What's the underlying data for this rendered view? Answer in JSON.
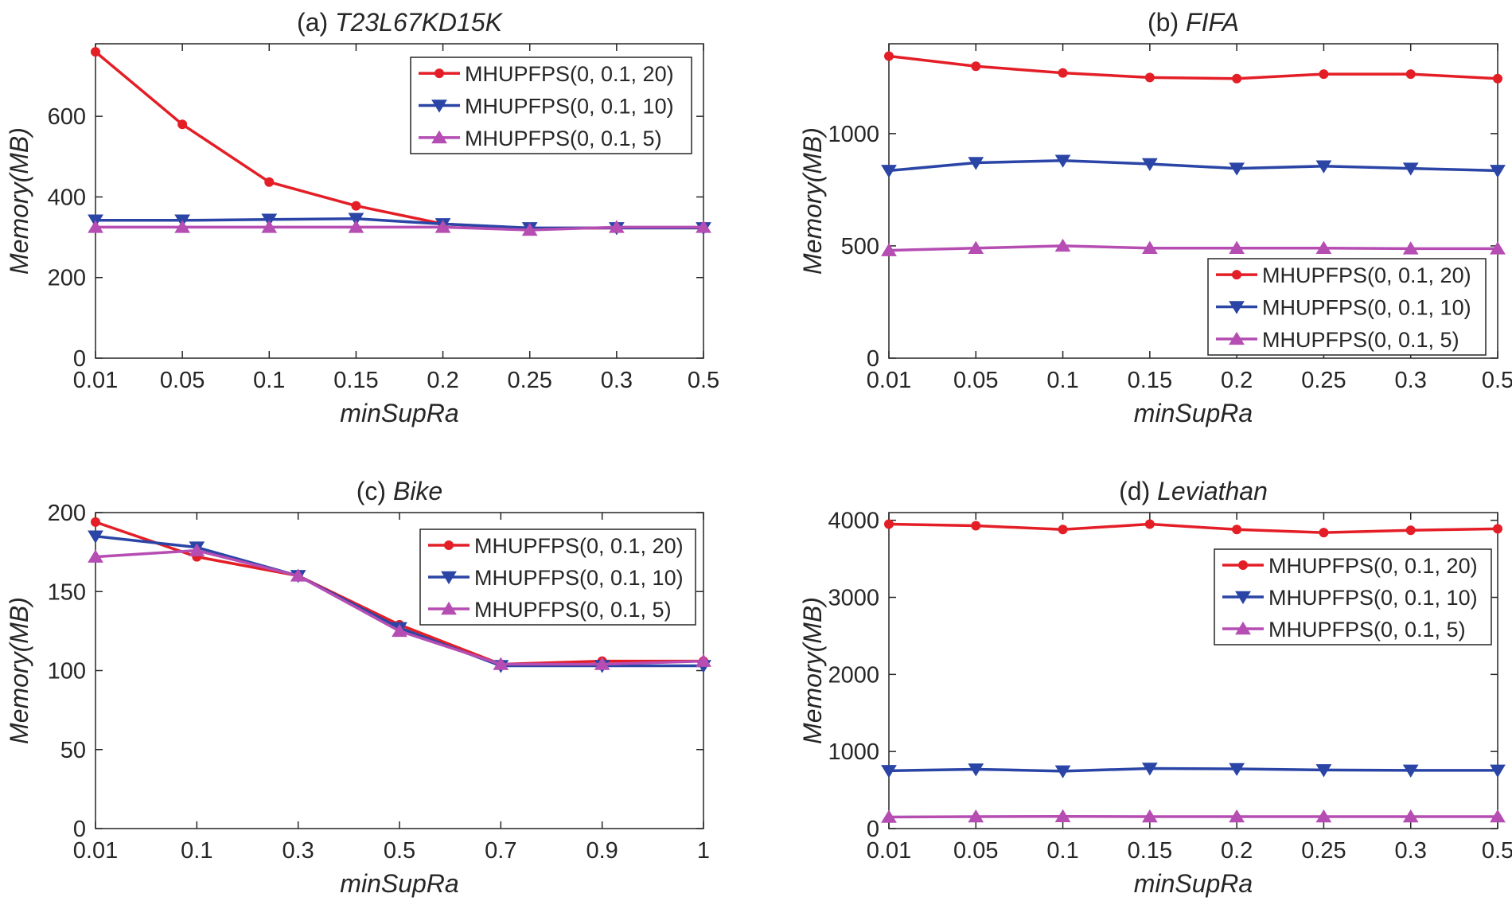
{
  "chart_data": [
    {
      "type": "line",
      "title_prefix": "(a) ",
      "title_name": "T23L67KD15K",
      "xlabel": "minSupRa",
      "ylabel": "Memory(MB)",
      "x": [
        "0.01",
        "0.05",
        "0.1",
        "0.15",
        "0.2",
        "0.25",
        "0.3",
        "0.5"
      ],
      "ylim": [
        0,
        780
      ],
      "yticks": [
        0,
        200,
        400,
        600
      ],
      "legend_position": "top-right",
      "series": [
        {
          "name": "MHUPFPS(0, 0.1, 20)",
          "color": "#e41e26",
          "marker": "dot",
          "values": [
            760,
            580,
            437,
            378,
            333,
            322,
            323,
            323
          ]
        },
        {
          "name": "MHUPFPS(0, 0.1, 10)",
          "color": "#2a45a6",
          "marker": "triangle-down",
          "values": [
            342,
            342,
            344,
            346,
            333,
            323,
            323,
            323
          ]
        },
        {
          "name": "MHUPFPS(0, 0.1, 5)",
          "color": "#b54db3",
          "marker": "triangle-up",
          "values": [
            325,
            325,
            325,
            325,
            325,
            318,
            325,
            325
          ]
        }
      ]
    },
    {
      "type": "line",
      "title_prefix": "(b) ",
      "title_name": "FIFA",
      "xlabel": "minSupRa",
      "ylabel": "Memory(MB)",
      "x": [
        "0.01",
        "0.05",
        "0.1",
        "0.15",
        "0.2",
        "0.25",
        "0.3",
        "0.5"
      ],
      "ylim": [
        0,
        1400
      ],
      "yticks": [
        0,
        500,
        1000
      ],
      "legend_position": "bottom-right",
      "series": [
        {
          "name": "MHUPFPS(0, 0.1, 20)",
          "color": "#e41e26",
          "marker": "dot",
          "values": [
            1345,
            1300,
            1270,
            1250,
            1245,
            1265,
            1265,
            1245
          ]
        },
        {
          "name": "MHUPFPS(0, 0.1, 10)",
          "color": "#2a45a6",
          "marker": "triangle-down",
          "values": [
            835,
            870,
            880,
            865,
            845,
            855,
            845,
            835
          ]
        },
        {
          "name": "MHUPFPS(0, 0.1, 5)",
          "color": "#b54db3",
          "marker": "triangle-up",
          "values": [
            480,
            490,
            500,
            490,
            490,
            490,
            488,
            488
          ]
        }
      ]
    },
    {
      "type": "line",
      "title_prefix": "(c) ",
      "title_name": "Bike",
      "xlabel": "minSupRa",
      "ylabel": "Memory(MB)",
      "x": [
        "0.01",
        "0.1",
        "0.3",
        "0.5",
        "0.7",
        "0.9",
        "1"
      ],
      "ylim": [
        0,
        200
      ],
      "yticks": [
        0,
        50,
        100,
        150,
        200
      ],
      "legend_position": "top-right",
      "series": [
        {
          "name": "MHUPFPS(0, 0.1, 20)",
          "color": "#e41e26",
          "marker": "dot",
          "values": [
            194,
            172,
            160,
            129,
            104,
            106,
            106
          ]
        },
        {
          "name": "MHUPFPS(0, 0.1, 10)",
          "color": "#2a45a6",
          "marker": "triangle-down",
          "values": [
            185,
            178,
            160,
            127,
            103,
            103,
            103
          ]
        },
        {
          "name": "MHUPFPS(0, 0.1, 5)",
          "color": "#b54db3",
          "marker": "triangle-up",
          "values": [
            172,
            176,
            160,
            125,
            104,
            104,
            106
          ]
        }
      ]
    },
    {
      "type": "line",
      "title_prefix": "(d) ",
      "title_name": "Leviathan",
      "xlabel": "minSupRa",
      "ylabel": "Memory(MB)",
      "x": [
        "0.01",
        "0.05",
        "0.1",
        "0.15",
        "0.2",
        "0.25",
        "0.3",
        "0.5"
      ],
      "ylim": [
        0,
        4100
      ],
      "yticks": [
        0,
        1000,
        2000,
        3000,
        4000
      ],
      "legend_position": "top-right",
      "series": [
        {
          "name": "MHUPFPS(0, 0.1, 20)",
          "color": "#e41e26",
          "marker": "dot",
          "values": [
            3950,
            3930,
            3880,
            3950,
            3880,
            3840,
            3870,
            3890
          ]
        },
        {
          "name": "MHUPFPS(0, 0.1, 10)",
          "color": "#2a45a6",
          "marker": "triangle-down",
          "values": [
            750,
            770,
            745,
            780,
            775,
            760,
            755,
            755
          ]
        },
        {
          "name": "MHUPFPS(0, 0.1, 5)",
          "color": "#b54db3",
          "marker": "triangle-up",
          "values": [
            150,
            155,
            158,
            155,
            155,
            155,
            155,
            155
          ]
        }
      ]
    }
  ]
}
